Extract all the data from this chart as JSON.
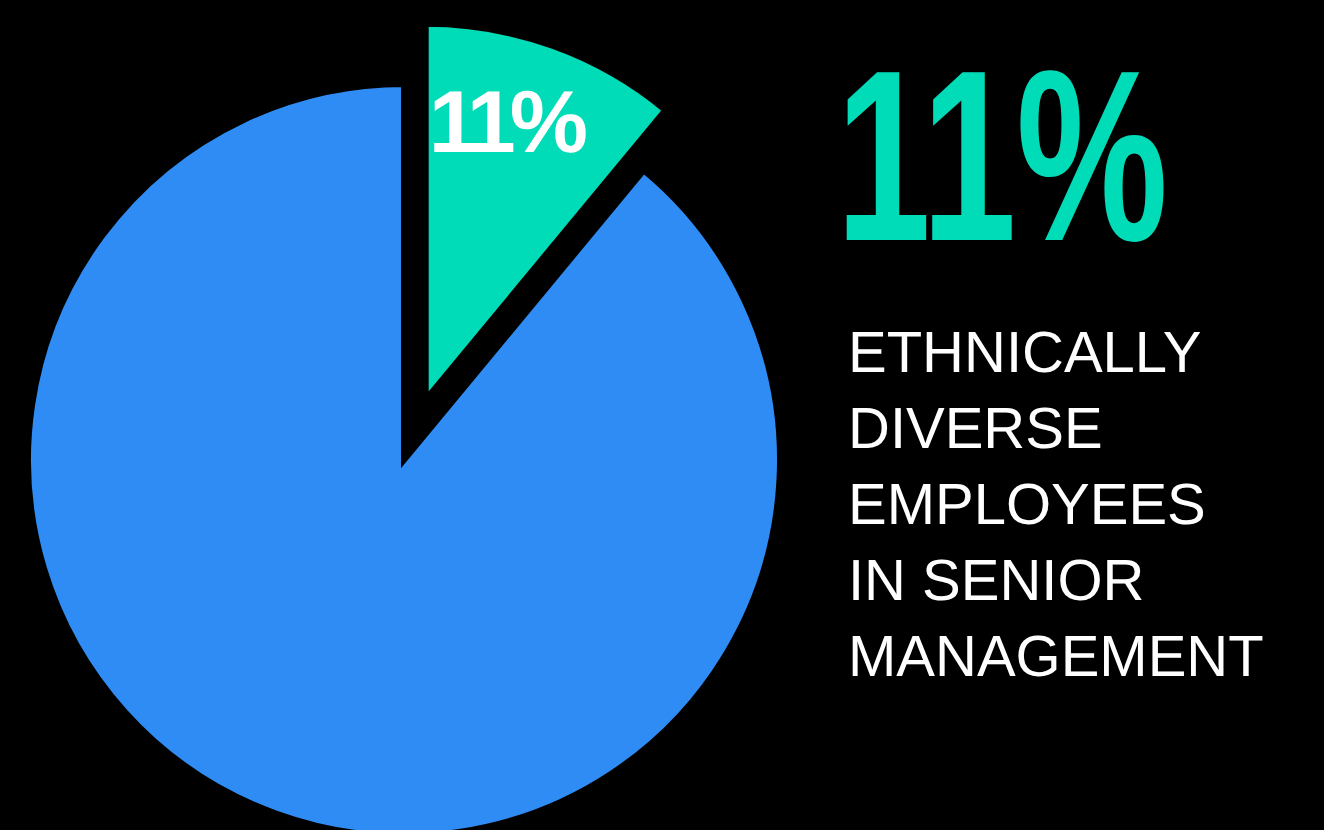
{
  "chart_data": {
    "type": "pie",
    "title": "11%",
    "subtitle": "ETHNICALLY\nDIVERSE\nEMPLOYEES\nIN SENIOR\nMANAGEMENT",
    "categories": [
      null,
      null
    ],
    "values": [
      11,
      89
    ],
    "colors": [
      "#00dcb8",
      "#2f8cf4"
    ],
    "value_labels": [
      "11%",
      null
    ]
  }
}
